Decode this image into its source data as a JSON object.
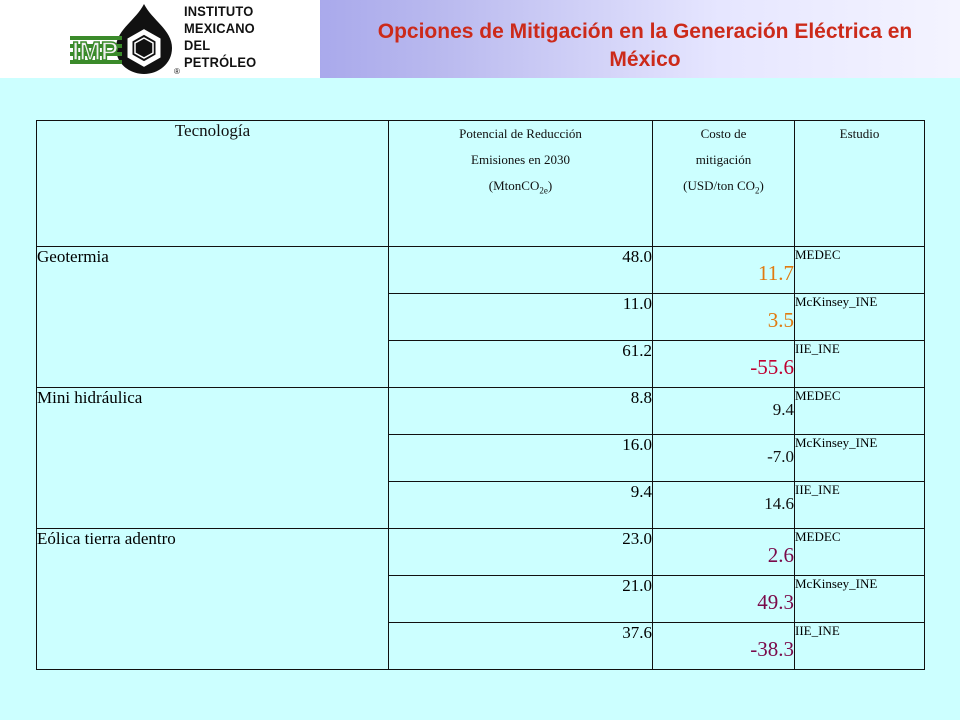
{
  "header": {
    "title": "Opciones de Mitigación en la Generación Eléctrica en México",
    "logo": {
      "abbr": "IMP",
      "lines": [
        "INSTITUTO",
        "MEXICANO",
        "DEL",
        "PETRÓLEO"
      ],
      "registered": "®"
    }
  },
  "colors": {
    "title": "#cc2a1a",
    "orange": "#e07a10",
    "red": "#c00030",
    "black": "#111111",
    "purple": "#7a0a4a",
    "background": "#ccffff"
  },
  "table": {
    "headers": {
      "tech": "Tecnología",
      "potential_l1": "Potencial de Reducción",
      "potential_l2": "Emisiones en 2030",
      "potential_l3_pre": "(MtonCO",
      "potential_l3_sub": "2e",
      "potential_l3_post": ")",
      "cost_l1": "Costo de",
      "cost_l2": "mitigación",
      "cost_l3_pre": "(USD/ton CO",
      "cost_l3_sub": "2",
      "cost_l3_post": ")",
      "study": "Estudio"
    },
    "groups": [
      {
        "technology": "Geotermia",
        "rows": [
          {
            "potential": "48.0",
            "cost": "11.7",
            "cost_color": "#e07a10",
            "cost_size": "big",
            "study": "MEDEC"
          },
          {
            "potential": "11.0",
            "cost": "3.5",
            "cost_color": "#e07a10",
            "cost_size": "big",
            "study": "McKinsey_INE"
          },
          {
            "potential": "61.2",
            "cost": "-55.6",
            "cost_color": "#c00030",
            "cost_size": "big",
            "study": "IIE_INE"
          }
        ]
      },
      {
        "technology": "Mini hidráulica",
        "rows": [
          {
            "potential": "8.8",
            "cost": "9.4",
            "cost_color": "#111111",
            "cost_size": "small",
            "study": "MEDEC"
          },
          {
            "potential": "16.0",
            "cost": "-7.0",
            "cost_color": "#111111",
            "cost_size": "small",
            "study": "McKinsey_INE"
          },
          {
            "potential": "9.4",
            "cost": "14.6",
            "cost_color": "#111111",
            "cost_size": "small",
            "study": "IIE_INE"
          }
        ]
      },
      {
        "technology": "Eólica tierra adentro",
        "rows": [
          {
            "potential": "23.0",
            "cost": "2.6",
            "cost_color": "#7a0a4a",
            "cost_size": "big",
            "study": "MEDEC"
          },
          {
            "potential": "21.0",
            "cost": "49.3",
            "cost_color": "#7a0a4a",
            "cost_size": "big",
            "study": "McKinsey_INE"
          },
          {
            "potential": "37.6",
            "cost": "-38.3",
            "cost_color": "#7a0a4a",
            "cost_size": "big",
            "study": "IIE_INE"
          }
        ]
      }
    ]
  }
}
